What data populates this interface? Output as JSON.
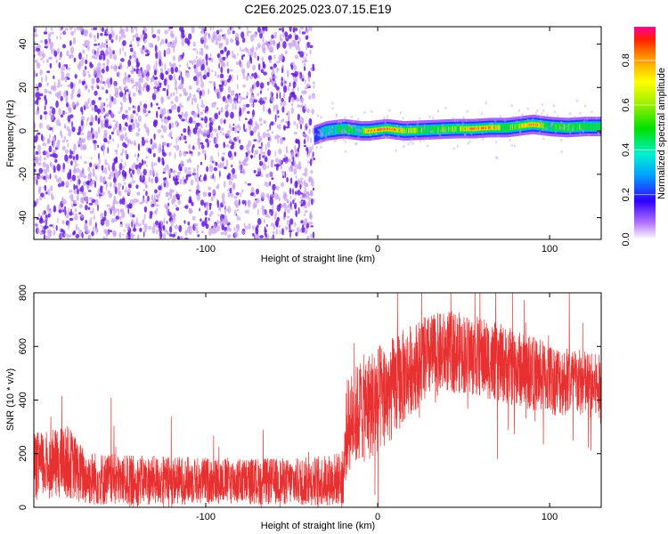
{
  "figure": {
    "title": "C2E6.2025.023.07.15.E19",
    "colors": {
      "signal": "#e83030",
      "speckle_light": "#c8a0f0",
      "speckle_dark": "#6a1fe0",
      "axis": "#000000"
    }
  },
  "chart_data": [
    {
      "type": "heatmap",
      "xlabel": "Height of straight line (km)",
      "ylabel": "Frequency (Hz)",
      "xlim": [
        -200,
        130
      ],
      "ylim": [
        -50,
        48
      ],
      "x_ticks": [
        -100,
        0,
        100
      ],
      "x_tick_labels": [
        "-100",
        "0",
        "100"
      ],
      "y_ticks": [
        -40,
        -20,
        0,
        20,
        40
      ],
      "y_tick_labels": [
        "-40",
        "-20",
        "0",
        "20",
        "40"
      ],
      "grid": false,
      "colorbar": {
        "label": "Normalized spectral amplitude",
        "range": [
          0,
          0.95
        ],
        "ticks": [
          0.0,
          0.2,
          0.4,
          0.6,
          0.8
        ],
        "tick_labels": [
          "0.0",
          "0.2",
          "0.4",
          "0.6",
          "0.8"
        ]
      },
      "regions": [
        {
          "name": "noise",
          "x_range": [
            -200,
            -37
          ],
          "freq_range": [
            -50,
            48
          ],
          "amplitude": [
            0.0,
            0.1
          ]
        },
        {
          "name": "signal-band",
          "x_range": [
            -37,
            130
          ],
          "center_freq": 1.5,
          "amplitude": [
            0.1,
            0.9
          ]
        }
      ],
      "signal_band": [
        {
          "x": -37,
          "f": -2,
          "amp": 0.2
        },
        {
          "x": -30,
          "f": 0,
          "amp": 0.4
        },
        {
          "x": -20,
          "f": 1,
          "amp": 0.5
        },
        {
          "x": -10,
          "f": 0,
          "amp": 0.5
        },
        {
          "x": -5,
          "f": 0,
          "amp": 0.85
        },
        {
          "x": 5,
          "f": 1,
          "amp": 0.9
        },
        {
          "x": 15,
          "f": 0,
          "amp": 0.7
        },
        {
          "x": 30,
          "f": 0.5,
          "amp": 0.5
        },
        {
          "x": 45,
          "f": 1,
          "amp": 0.6
        },
        {
          "x": 55,
          "f": 1,
          "amp": 0.9
        },
        {
          "x": 65,
          "f": 1.5,
          "amp": 0.85
        },
        {
          "x": 75,
          "f": 1.5,
          "amp": 0.5
        },
        {
          "x": 90,
          "f": 3,
          "amp": 0.9
        },
        {
          "x": 100,
          "f": 2,
          "amp": 0.5
        },
        {
          "x": 110,
          "f": 1.5,
          "amp": 0.6
        },
        {
          "x": 120,
          "f": 2,
          "amp": 0.55
        },
        {
          "x": 130,
          "f": 2,
          "amp": 0.5
        }
      ]
    },
    {
      "type": "line",
      "xlabel": "Height of straight line (km)",
      "ylabel": "SNR (10 * v/v)",
      "xlim": [
        -200,
        130
      ],
      "ylim": [
        0,
        800
      ],
      "x_ticks": [
        -100,
        0,
        100
      ],
      "x_tick_labels": [
        "-100",
        "0",
        "100"
      ],
      "y_ticks": [
        0,
        200,
        400,
        600,
        800
      ],
      "y_tick_labels": [
        "0",
        "200",
        "400",
        "600",
        "800"
      ],
      "grid": false,
      "series": [
        {
          "x": [
            -200,
            -190,
            -180,
            -175,
            -170,
            -150,
            -100,
            -50,
            -30,
            -20,
            -18,
            -10,
            -5,
            0,
            10,
            20,
            30,
            40,
            50,
            60,
            80,
            100,
            120,
            130
          ],
          "mean": [
            150,
            160,
            170,
            140,
            110,
            100,
            100,
            95,
            100,
            110,
            300,
            360,
            380,
            400,
            450,
            520,
            560,
            580,
            575,
            560,
            520,
            480,
            460,
            440
          ],
          "spread": [
            160,
            160,
            170,
            150,
            130,
            120,
            110,
            110,
            120,
            130,
            220,
            250,
            260,
            260,
            240,
            210,
            200,
            190,
            190,
            190,
            180,
            170,
            160,
            160
          ]
        }
      ]
    }
  ]
}
